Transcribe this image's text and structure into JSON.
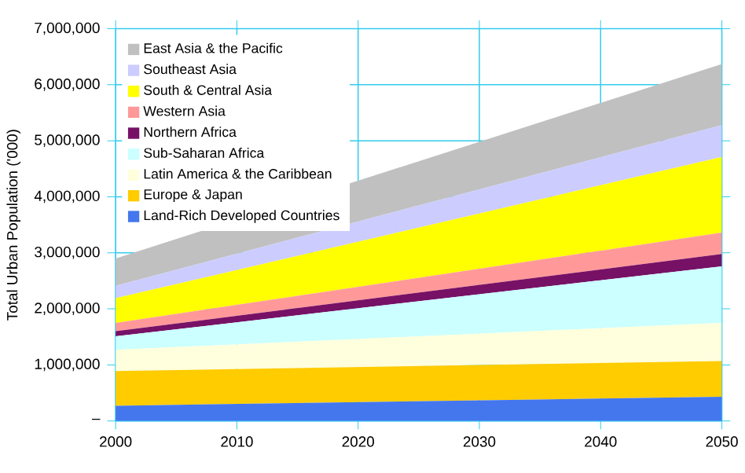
{
  "chart_data": {
    "type": "area",
    "stacked": true,
    "ylabel": "Total Urban Population ('000)",
    "x": [
      2000,
      2050
    ],
    "series": [
      {
        "name": "Land-Rich Developed Countries",
        "color": "#4477ee",
        "values": [
          270000,
          430000
        ]
      },
      {
        "name": "Europe & Japan",
        "color": "#ffcc00",
        "values": [
          620000,
          640000
        ]
      },
      {
        "name": "Latin America & the Caribbean",
        "color": "#ffffdd",
        "values": [
          380000,
          680000
        ]
      },
      {
        "name": "Sub-Saharan Africa",
        "color": "#ccffff",
        "values": [
          240000,
          1010000
        ]
      },
      {
        "name": "Northern Africa",
        "color": "#771166",
        "values": [
          90000,
          220000
        ]
      },
      {
        "name": "Western Asia",
        "color": "#ff9999",
        "values": [
          150000,
          380000
        ]
      },
      {
        "name": "South & Central Asia",
        "color": "#ffff00",
        "values": [
          440000,
          1350000
        ]
      },
      {
        "name": "Southeast Asia",
        "color": "#ccccff",
        "values": [
          220000,
          570000
        ]
      },
      {
        "name": "East Asia & the Pacific",
        "color": "#c0c0c0",
        "values": [
          490000,
          1090000
        ]
      }
    ],
    "xlim": [
      2000,
      2050
    ],
    "xticks": [
      2000,
      2010,
      2020,
      2030,
      2040,
      2050
    ],
    "ylim": [
      0,
      7000000
    ],
    "yticks": [
      {
        "value": 0,
        "label": "–"
      },
      {
        "value": 1000000,
        "label": "1,000,000"
      },
      {
        "value": 2000000,
        "label": "2,000,000"
      },
      {
        "value": 3000000,
        "label": "3,000,000"
      },
      {
        "value": 4000000,
        "label": "4,000,000"
      },
      {
        "value": 5000000,
        "label": "5,000,000"
      },
      {
        "value": 6000000,
        "label": "6,000,000"
      },
      {
        "value": 7000000,
        "label": "7,000,000"
      }
    ],
    "grid": true,
    "legend": "top left"
  }
}
